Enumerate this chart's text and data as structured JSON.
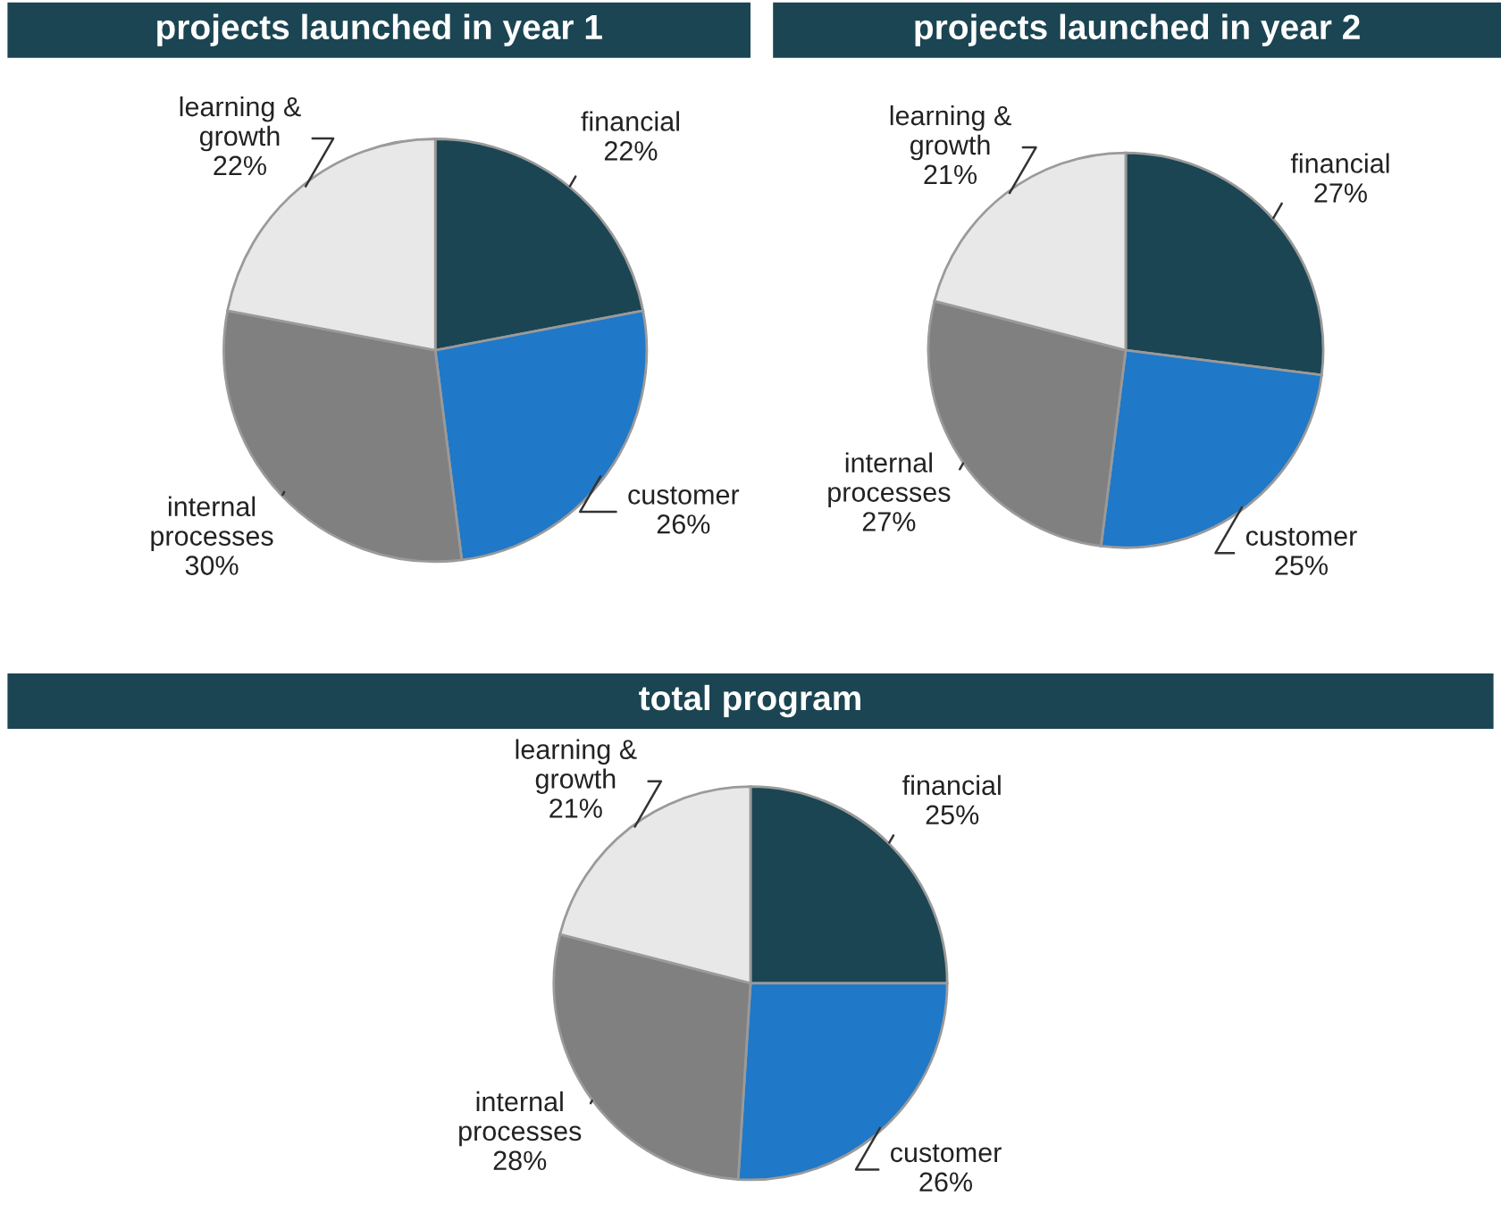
{
  "chart_data": [
    {
      "type": "pie",
      "title": "projects launched in year 1",
      "categories": [
        "financial",
        "customer",
        "internal\nprocesses",
        "learning &\ngrowth"
      ],
      "values": [
        22,
        26,
        30,
        22
      ],
      "value_labels": [
        "22%",
        "26%",
        "30%",
        "22%"
      ],
      "colors": [
        "#1b4552",
        "#1f78c8",
        "#808080",
        "#e8e8e8"
      ],
      "legend": false
    },
    {
      "type": "pie",
      "title": "projects launched in year 2",
      "categories": [
        "financial",
        "customer",
        "internal\nprocesses",
        "learning &\ngrowth"
      ],
      "values": [
        27,
        25,
        27,
        21
      ],
      "value_labels": [
        "27%",
        "25%",
        "27%",
        "21%"
      ],
      "colors": [
        "#1b4552",
        "#1f78c8",
        "#808080",
        "#e8e8e8"
      ],
      "legend": false
    },
    {
      "type": "pie",
      "title": "total program",
      "categories": [
        "financial",
        "customer",
        "internal\nprocesses",
        "learning &\ngrowth"
      ],
      "values": [
        25,
        26,
        28,
        21
      ],
      "value_labels": [
        "25%",
        "26%",
        "28%",
        "21%"
      ],
      "colors": [
        "#1b4552",
        "#1f78c8",
        "#808080",
        "#e8e8e8"
      ],
      "legend": false
    }
  ]
}
